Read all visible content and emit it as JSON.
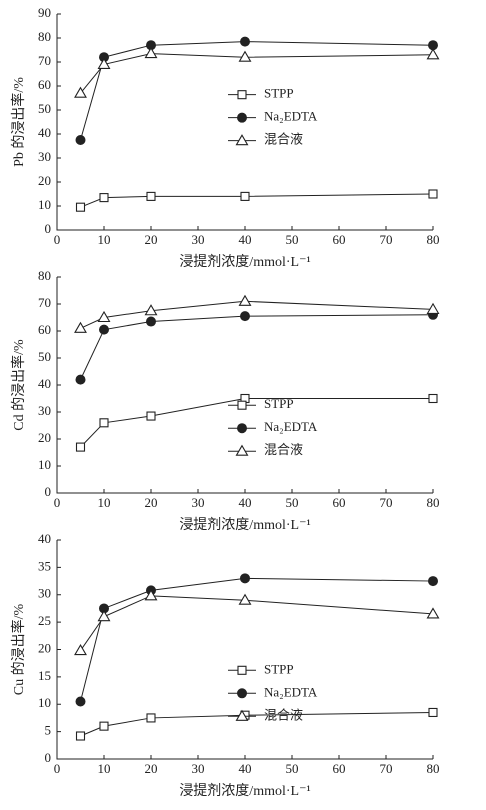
{
  "chart_data": [
    {
      "type": "line",
      "ylabel": "Pb 的浸出率/%",
      "xlabel": "浸提剂浓度/mmol·L⁻¹",
      "x": [
        5,
        10,
        20,
        40,
        80
      ],
      "xlim": [
        0,
        80
      ],
      "xticks": [
        0,
        10,
        20,
        30,
        40,
        50,
        60,
        70,
        80
      ],
      "ylim": [
        0,
        90
      ],
      "yticks": [
        0,
        10,
        20,
        30,
        40,
        50,
        60,
        70,
        80,
        90
      ],
      "legend_position": "center",
      "series": [
        {
          "name": "STPP",
          "color": "#222222",
          "marker": "square",
          "values": [
            9.5,
            13.5,
            14,
            14,
            15
          ]
        },
        {
          "name": "Na₂EDTA",
          "color": "#222222",
          "marker": "circle",
          "values": [
            37.5,
            72,
            77,
            78.5,
            77
          ]
        },
        {
          "name": "混合液",
          "color": "#222222",
          "marker": "triangle",
          "values": [
            57,
            69,
            73.5,
            72,
            73
          ]
        }
      ]
    },
    {
      "type": "line",
      "ylabel": "Cd 的浸出率/%",
      "xlabel": "浸提剂浓度/mmol·L⁻¹",
      "x": [
        5,
        10,
        20,
        40,
        80
      ],
      "xlim": [
        0,
        80
      ],
      "xticks": [
        0,
        10,
        20,
        30,
        40,
        50,
        60,
        70,
        80
      ],
      "ylim": [
        0,
        80
      ],
      "yticks": [
        0,
        10,
        20,
        30,
        40,
        50,
        60,
        70,
        80
      ],
      "legend_position": "lower-center",
      "series": [
        {
          "name": "STPP",
          "color": "#222222",
          "marker": "square",
          "values": [
            17,
            26,
            28.5,
            35,
            35
          ]
        },
        {
          "name": "Na₂EDTA",
          "color": "#222222",
          "marker": "circle",
          "values": [
            42,
            60.5,
            63.5,
            65.5,
            66
          ]
        },
        {
          "name": "混合液",
          "color": "#222222",
          "marker": "triangle",
          "values": [
            61,
            65,
            67.5,
            71,
            68
          ]
        }
      ]
    },
    {
      "type": "line",
      "ylabel": "Cu 的浸出率/%",
      "xlabel": "浸提剂浓度/mmol·L⁻¹",
      "x": [
        5,
        10,
        20,
        40,
        80
      ],
      "xlim": [
        0,
        80
      ],
      "xticks": [
        0,
        10,
        20,
        30,
        40,
        50,
        60,
        70,
        80
      ],
      "ylim": [
        0,
        40
      ],
      "yticks": [
        0,
        5,
        10,
        15,
        20,
        25,
        30,
        35,
        40
      ],
      "legend_position": "lower-center",
      "series": [
        {
          "name": "STPP",
          "color": "#222222",
          "marker": "square",
          "values": [
            4.2,
            6,
            7.5,
            8,
            8.5
          ]
        },
        {
          "name": "Na₂EDTA",
          "color": "#222222",
          "marker": "circle",
          "values": [
            10.5,
            27.5,
            30.8,
            33,
            32.5
          ]
        },
        {
          "name": "混合液",
          "color": "#222222",
          "marker": "triangle",
          "values": [
            19.8,
            26,
            29.8,
            29,
            26.5
          ]
        }
      ]
    }
  ]
}
